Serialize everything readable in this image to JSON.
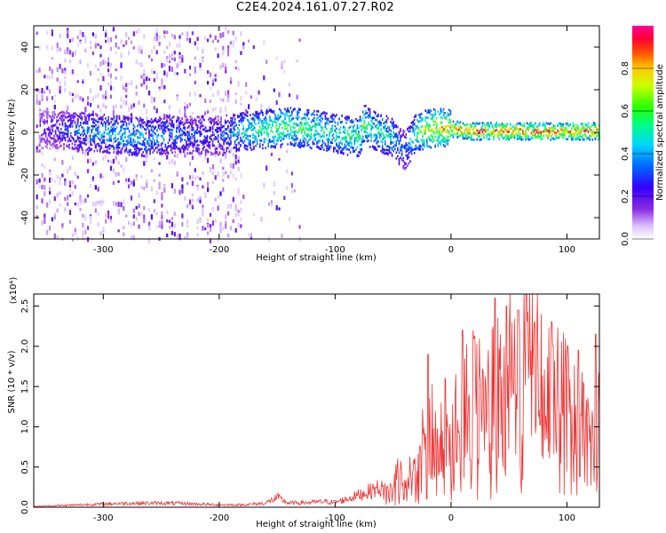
{
  "title": "C2E4.2024.161.07.27.R02",
  "chart_data": [
    {
      "type": "heatmap",
      "xlabel": "Height of straight line (km)",
      "ylabel": "Frequency (Hz)",
      "xlim": [
        -360,
        128
      ],
      "ylim": [
        -50,
        50
      ],
      "xticks": [
        -300,
        -200,
        -100,
        0,
        100
      ],
      "yticks": [
        -40,
        -20,
        0,
        20,
        40
      ],
      "colorbar": {
        "label": "Normalized spectral amplitude",
        "range": [
          0.0,
          1.0
        ],
        "ticks": [
          "0.0",
          "0.2",
          "0.4",
          "0.6",
          "0.8"
        ],
        "colormap": "rainbow (white-violet-blue-cyan-green-yellow-orange-red-pink)"
      },
      "ridge": {
        "description": "high amplitude band near 0 Hz",
        "x": [
          -350,
          -320,
          -300,
          -280,
          -260,
          -240,
          -220,
          -200,
          -180,
          -160,
          -140,
          -120,
          -100,
          -90,
          -80,
          -75,
          -70,
          -60,
          -50,
          -45,
          -40,
          -35,
          -30,
          -20,
          -10,
          0,
          20,
          40,
          60,
          80,
          100,
          128
        ],
        "freq": [
          2,
          1,
          0,
          -1,
          -2,
          0,
          -1,
          -1,
          1,
          2,
          3,
          2,
          0,
          -1,
          -2,
          5,
          2,
          0,
          -2,
          -6,
          -8,
          -4,
          1,
          2,
          3,
          2,
          1,
          1,
          1,
          1,
          1,
          1
        ],
        "amplitude": [
          0.2,
          0.35,
          0.4,
          0.45,
          0.4,
          0.35,
          0.3,
          0.3,
          0.5,
          0.55,
          0.6,
          0.55,
          0.5,
          0.55,
          0.55,
          0.6,
          0.5,
          0.5,
          0.45,
          0.35,
          0.3,
          0.45,
          0.6,
          0.7,
          0.75,
          0.8,
          0.85,
          0.85,
          0.85,
          0.85,
          0.85,
          0.85
        ]
      }
    },
    {
      "type": "line",
      "xlabel": "Height of straight line (km)",
      "ylabel": "SNR (10 * v/v)",
      "y_multiplier": "(x10⁴)",
      "xlim": [
        -360,
        128
      ],
      "ylim": [
        0.0,
        2.65
      ],
      "xticks": [
        -300,
        -200,
        -100,
        0,
        100
      ],
      "yticks": [
        "0.0",
        "0.5",
        "1.0",
        "1.5",
        "2.0",
        "2.5"
      ],
      "color": "#ee3333",
      "series": [
        {
          "x": [
            -360,
            -340,
            -320,
            -300,
            -280,
            -260,
            -240,
            -220,
            -200,
            -180,
            -160,
            -150,
            -140,
            -120,
            -110,
            -100,
            -90,
            -80,
            -70,
            -60,
            -50,
            -45,
            -40,
            -35,
            -30,
            -25,
            -20,
            -15,
            -10,
            -5,
            0,
            5,
            10,
            20,
            30,
            40,
            50,
            60,
            70,
            80,
            90,
            100,
            110,
            120,
            125,
            128
          ],
          "values": [
            0.01,
            0.02,
            0.03,
            0.04,
            0.05,
            0.05,
            0.05,
            0.04,
            0.03,
            0.03,
            0.05,
            0.12,
            0.05,
            0.06,
            0.07,
            0.06,
            0.1,
            0.15,
            0.2,
            0.25,
            0.3,
            0.5,
            0.4,
            0.6,
            0.7,
            0.9,
            1.0,
            1.2,
            1.1,
            1.3,
            1.2,
            1.5,
            1.4,
            1.7,
            1.6,
            1.8,
            2.0,
            2.1,
            2.2,
            1.9,
            1.7,
            1.6,
            1.4,
            1.0,
            1.1,
            1.5
          ],
          "peaks": [
            [
              -20,
              1.9
            ],
            [
              -5,
              1.6
            ],
            [
              10,
              2.2
            ],
            [
              20,
              2.1
            ],
            [
              38,
              2.6
            ],
            [
              48,
              2.5
            ],
            [
              58,
              2.45
            ],
            [
              65,
              2.65
            ],
            [
              72,
              2.3
            ],
            [
              88,
              2.0
            ],
            [
              110,
              1.95
            ],
            [
              125,
              2.15
            ]
          ]
        }
      ]
    }
  ]
}
